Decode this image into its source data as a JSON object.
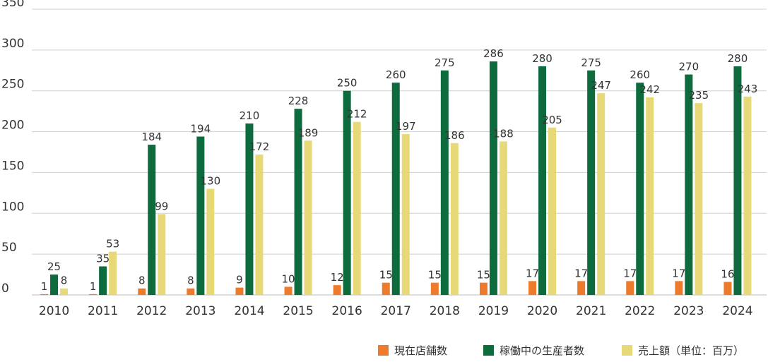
{
  "chart_data": {
    "type": "bar",
    "categories": [
      "2010",
      "2011",
      "2012",
      "2013",
      "2014",
      "2015",
      "2016",
      "2017",
      "2018",
      "2019",
      "2020",
      "2021",
      "2022",
      "2023",
      "2024"
    ],
    "series": [
      {
        "name": "現在店舗数",
        "color": "#ee7a2b",
        "values": [
          1,
          1,
          8,
          8,
          9,
          10,
          12,
          15,
          15,
          15,
          17,
          17,
          17,
          17,
          16
        ]
      },
      {
        "name": "稼働中の生産者数",
        "color": "#0d6b3d",
        "values": [
          25,
          35,
          184,
          194,
          210,
          228,
          250,
          260,
          275,
          286,
          280,
          275,
          260,
          270,
          280
        ]
      },
      {
        "name": "売上額（単位：百万）",
        "color": "#e8d978",
        "values": [
          8,
          53,
          99,
          130,
          172,
          189,
          212,
          197,
          186,
          188,
          205,
          247,
          242,
          235,
          243
        ]
      }
    ],
    "ylim": [
      0,
      350
    ],
    "yticks": [
      0,
      50,
      100,
      150,
      200,
      250,
      300,
      350
    ],
    "grid": true,
    "legend_position": "bottom-right",
    "title": "",
    "xlabel": "",
    "ylabel": ""
  }
}
